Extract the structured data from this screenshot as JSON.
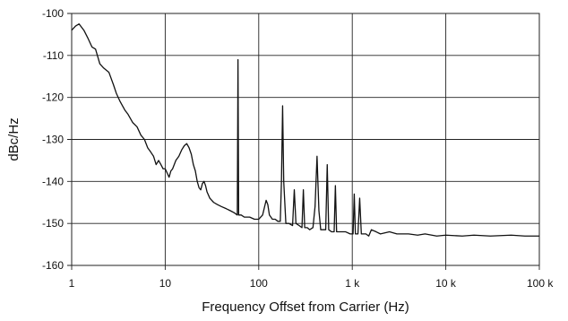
{
  "chart_data": {
    "type": "line",
    "title": "",
    "xlabel": "Frequency Offset from Carrier (Hz)",
    "ylabel": "dBc/Hz",
    "x_scale": "log",
    "xlim": [
      1,
      100000
    ],
    "ylim": [
      -160,
      -100
    ],
    "grid": true,
    "legend": "none",
    "line_color": "#111111",
    "x_ticks": [
      {
        "value": 1,
        "label": "1"
      },
      {
        "value": 10,
        "label": "10"
      },
      {
        "value": 100,
        "label": "100"
      },
      {
        "value": 1000,
        "label": "1 k"
      },
      {
        "value": 10000,
        "label": "10 k"
      },
      {
        "value": 100000,
        "label": "100 k"
      }
    ],
    "y_ticks": [
      {
        "value": -100,
        "label": "-100"
      },
      {
        "value": -110,
        "label": "-110"
      },
      {
        "value": -120,
        "label": "-120"
      },
      {
        "value": -130,
        "label": "-130"
      },
      {
        "value": -140,
        "label": "-140"
      },
      {
        "value": -150,
        "label": "-150"
      },
      {
        "value": -160,
        "label": "-160"
      }
    ],
    "series": [
      {
        "values": [
          [
            1,
            -104
          ],
          [
            1.1,
            -103
          ],
          [
            1.2,
            -102.5
          ],
          [
            1.35,
            -104
          ],
          [
            1.5,
            -106
          ],
          [
            1.65,
            -108
          ],
          [
            1.8,
            -108.5
          ],
          [
            2,
            -112
          ],
          [
            2.2,
            -113
          ],
          [
            2.5,
            -114
          ],
          [
            2.8,
            -117
          ],
          [
            3,
            -119
          ],
          [
            3.3,
            -121
          ],
          [
            3.7,
            -123
          ],
          [
            4,
            -124
          ],
          [
            4.5,
            -126
          ],
          [
            5,
            -127
          ],
          [
            5.5,
            -129
          ],
          [
            6,
            -130
          ],
          [
            6.5,
            -132
          ],
          [
            7,
            -133
          ],
          [
            7.5,
            -134
          ],
          [
            8,
            -136
          ],
          [
            8.5,
            -135
          ],
          [
            9,
            -136
          ],
          [
            9.5,
            -137
          ],
          [
            10,
            -137
          ],
          [
            10.5,
            -138
          ],
          [
            11,
            -139
          ],
          [
            11.5,
            -137.5
          ],
          [
            12,
            -137
          ],
          [
            13,
            -135
          ],
          [
            14,
            -134
          ],
          [
            15,
            -132.5
          ],
          [
            16,
            -131.5
          ],
          [
            17,
            -131
          ],
          [
            18,
            -132
          ],
          [
            19,
            -133.5
          ],
          [
            20,
            -136
          ],
          [
            21,
            -137.5
          ],
          [
            22,
            -140
          ],
          [
            23,
            -141.5
          ],
          [
            24,
            -142
          ],
          [
            25,
            -140.5
          ],
          [
            26,
            -140
          ],
          [
            27,
            -141
          ],
          [
            28,
            -142.5
          ],
          [
            30,
            -144
          ],
          [
            33,
            -145
          ],
          [
            36,
            -145.5
          ],
          [
            40,
            -146
          ],
          [
            45,
            -146.5
          ],
          [
            50,
            -147
          ],
          [
            55,
            -147.5
          ],
          [
            59,
            -148
          ],
          [
            60,
            -111
          ],
          [
            61,
            -148
          ],
          [
            65,
            -148
          ],
          [
            70,
            -148.5
          ],
          [
            80,
            -148.5
          ],
          [
            90,
            -149
          ],
          [
            100,
            -149
          ],
          [
            110,
            -148
          ],
          [
            120,
            -144.5
          ],
          [
            125,
            -145.5
          ],
          [
            130,
            -148
          ],
          [
            140,
            -149
          ],
          [
            150,
            -149
          ],
          [
            160,
            -149.5
          ],
          [
            170,
            -149.5
          ],
          [
            175,
            -140
          ],
          [
            180,
            -122
          ],
          [
            185,
            -140
          ],
          [
            195,
            -150
          ],
          [
            210,
            -150
          ],
          [
            230,
            -150.5
          ],
          [
            240,
            -142
          ],
          [
            250,
            -150
          ],
          [
            270,
            -150.5
          ],
          [
            290,
            -151
          ],
          [
            300,
            -142
          ],
          [
            310,
            -151
          ],
          [
            330,
            -151
          ],
          [
            350,
            -151.5
          ],
          [
            380,
            -151
          ],
          [
            400,
            -146
          ],
          [
            420,
            -134
          ],
          [
            440,
            -147
          ],
          [
            460,
            -151.5
          ],
          [
            490,
            -151.5
          ],
          [
            520,
            -151.5
          ],
          [
            540,
            -136
          ],
          [
            560,
            -151.5
          ],
          [
            600,
            -152
          ],
          [
            640,
            -152
          ],
          [
            660,
            -141
          ],
          [
            680,
            -152
          ],
          [
            750,
            -152
          ],
          [
            850,
            -152
          ],
          [
            950,
            -152.5
          ],
          [
            1020,
            -152.5
          ],
          [
            1050,
            -143
          ],
          [
            1080,
            -152.5
          ],
          [
            1150,
            -152.5
          ],
          [
            1200,
            -144
          ],
          [
            1250,
            -152.5
          ],
          [
            1300,
            -152.5
          ],
          [
            1400,
            -152.5
          ],
          [
            1500,
            -153
          ],
          [
            1600,
            -151.5
          ],
          [
            1800,
            -152
          ],
          [
            2000,
            -152.5
          ],
          [
            2500,
            -152
          ],
          [
            3000,
            -152.5
          ],
          [
            4000,
            -152.5
          ],
          [
            5000,
            -152.8
          ],
          [
            6000,
            -152.5
          ],
          [
            8000,
            -153
          ],
          [
            10000,
            -152.8
          ],
          [
            15000,
            -153
          ],
          [
            20000,
            -152.8
          ],
          [
            30000,
            -153
          ],
          [
            50000,
            -152.8
          ],
          [
            70000,
            -153
          ],
          [
            100000,
            -153
          ]
        ]
      }
    ]
  }
}
